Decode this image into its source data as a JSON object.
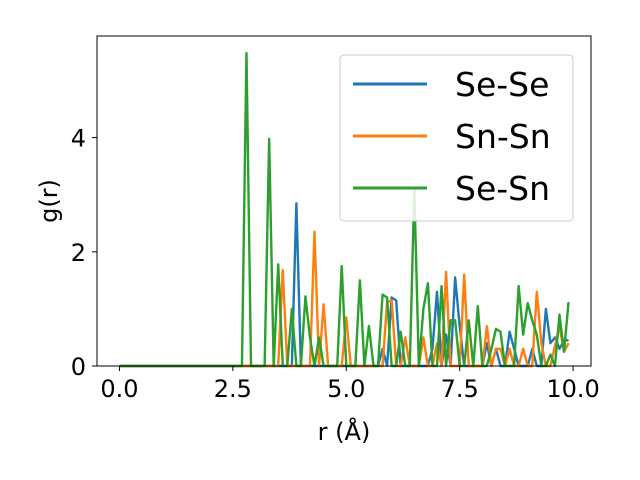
{
  "chart_data": {
    "type": "line",
    "title": "",
    "xlabel": "r (Å)",
    "ylabel": "g(r)",
    "xlim": [
      -0.495,
      10.395
    ],
    "ylim": [
      0,
      5.78
    ],
    "xticks": [
      0.0,
      2.5,
      5.0,
      7.5,
      10.0
    ],
    "xtick_labels": [
      "0.0",
      "2.5",
      "5.0",
      "7.5",
      "10.0"
    ],
    "yticks": [
      0,
      2,
      4
    ],
    "ytick_labels": [
      "0",
      "2",
      "4"
    ],
    "grid": false,
    "legend_position": "top-right",
    "x": [
      0.0,
      0.1,
      0.2,
      0.3,
      0.4,
      0.5,
      0.6,
      0.7,
      0.8,
      0.9,
      1.0,
      1.1,
      1.2,
      1.3,
      1.4,
      1.5,
      1.6,
      1.7,
      1.8,
      1.9,
      2.0,
      2.1,
      2.2,
      2.3,
      2.4,
      2.5,
      2.6,
      2.7,
      2.8,
      2.9,
      3.0,
      3.1,
      3.2,
      3.3,
      3.4,
      3.5,
      3.6,
      3.7,
      3.8,
      3.9,
      4.0,
      4.1,
      4.2,
      4.3,
      4.4,
      4.5,
      4.6,
      4.7,
      4.8,
      4.9,
      5.0,
      5.1,
      5.2,
      5.3,
      5.4,
      5.5,
      5.6,
      5.7,
      5.8,
      5.9,
      6.0,
      6.1,
      6.2,
      6.3,
      6.4,
      6.5,
      6.6,
      6.7,
      6.8,
      6.9,
      7.0,
      7.1,
      7.2,
      7.3,
      7.4,
      7.5,
      7.6,
      7.7,
      7.8,
      7.9,
      8.0,
      8.1,
      8.2,
      8.3,
      8.4,
      8.5,
      8.6,
      8.7,
      8.8,
      8.9,
      9.0,
      9.1,
      9.2,
      9.3,
      9.4,
      9.5,
      9.6,
      9.7,
      9.8,
      9.9
    ],
    "series": [
      {
        "name": "Se-Se",
        "color": "#1f77b4",
        "values": [
          0,
          0,
          0,
          0,
          0,
          0,
          0,
          0,
          0,
          0,
          0,
          0,
          0,
          0,
          0,
          0,
          0,
          0,
          0,
          0,
          0,
          0,
          0,
          0,
          0,
          0,
          0,
          0,
          0,
          0,
          0,
          0,
          0,
          0,
          0,
          0,
          0,
          0,
          0,
          2.85,
          0,
          0,
          0,
          0,
          0,
          0,
          0,
          0,
          0,
          0,
          0,
          0,
          0,
          0,
          0,
          0,
          0,
          0,
          0.3,
          0,
          1.2,
          1.15,
          0,
          0,
          0,
          0,
          0,
          0,
          0,
          0.3,
          1.3,
          0,
          0.55,
          0,
          1.55,
          0.7,
          0,
          0,
          0,
          0,
          0,
          0.4,
          0,
          0.3,
          0,
          0,
          0.6,
          0.3,
          0,
          0,
          0,
          0.3,
          0,
          0,
          1.0,
          0.4,
          0.5,
          0.3,
          0.45,
          0.45
        ]
      },
      {
        "name": "Sn-Sn",
        "color": "#ff7f0e",
        "values": [
          0,
          0,
          0,
          0,
          0,
          0,
          0,
          0,
          0,
          0,
          0,
          0,
          0,
          0,
          0,
          0,
          0,
          0,
          0,
          0,
          0,
          0,
          0,
          0,
          0,
          0,
          0,
          0,
          0,
          0,
          0,
          0,
          0,
          0,
          0,
          0,
          1.68,
          0,
          0,
          0,
          0,
          0,
          0,
          2.35,
          0,
          1.08,
          0,
          0,
          0,
          0,
          0.85,
          0,
          0,
          0,
          0,
          0,
          0,
          0,
          0,
          1.12,
          1.15,
          0,
          0,
          0.5,
          0,
          0,
          0,
          0.5,
          0,
          0,
          0.4,
          0,
          1.65,
          0,
          0,
          0,
          1.6,
          0,
          0,
          0,
          0,
          0.7,
          0,
          0.3,
          0.3,
          0,
          0.3,
          0,
          0,
          0.3,
          0,
          0,
          1.3,
          0.4,
          0,
          0,
          0.35,
          0.7,
          0.25,
          0.4
        ]
      },
      {
        "name": "Se-Sn",
        "color": "#2ca02c",
        "values": [
          0,
          0,
          0,
          0,
          0,
          0,
          0,
          0,
          0,
          0,
          0,
          0,
          0,
          0,
          0,
          0,
          0,
          0,
          0,
          0,
          0,
          0,
          0,
          0,
          0,
          0,
          0,
          0,
          5.48,
          0,
          0,
          0,
          0,
          3.98,
          0,
          1.78,
          0,
          0,
          1.0,
          0,
          0,
          1.22,
          0.5,
          0,
          0.5,
          0,
          0,
          0,
          0,
          1.75,
          0,
          0,
          0,
          1.5,
          0,
          0.7,
          0,
          0,
          1.25,
          1.2,
          0,
          0,
          0.6,
          0,
          0,
          3.1,
          0,
          1.0,
          1.45,
          0,
          0,
          1.4,
          0,
          0.8,
          0.8,
          0,
          0,
          0.8,
          0,
          1.05,
          0,
          0,
          0.3,
          0.65,
          0.6,
          0,
          0,
          0,
          1.4,
          0.55,
          1.1,
          0.8,
          0.55,
          0,
          0,
          0.2,
          0,
          0.9,
          0.25,
          1.12
        ]
      }
    ]
  }
}
